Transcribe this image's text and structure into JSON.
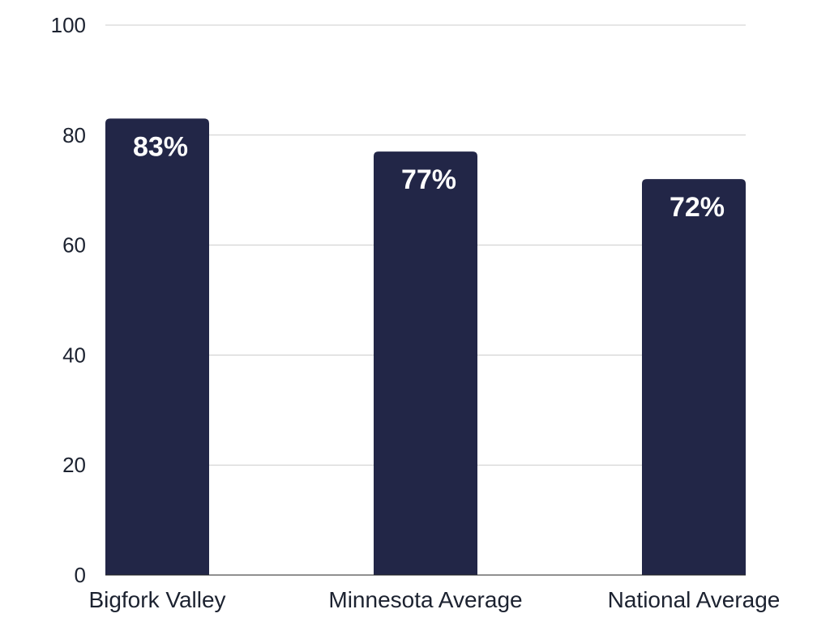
{
  "chart_data": {
    "type": "bar",
    "categories": [
      "Bigfork Valley",
      "Minnesota Average",
      "National Average"
    ],
    "values": [
      83,
      77,
      72
    ],
    "data_labels": [
      "83%",
      "77%",
      "72%"
    ],
    "title": "",
    "xlabel": "",
    "ylabel": "",
    "ylim": [
      0,
      100
    ],
    "yticks": [
      0,
      20,
      40,
      60,
      80,
      100
    ],
    "grid": true,
    "legend": "none",
    "bar_color": "#222647"
  }
}
